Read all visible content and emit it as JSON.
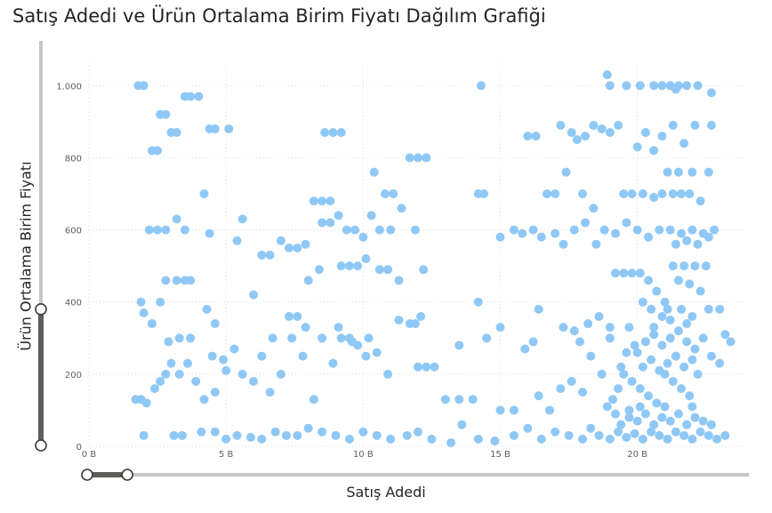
{
  "chart_data": {
    "type": "scatter",
    "title": "Satış Adedi ve Ürün Ortalama Birim Fiyatı Dağılım Grafiği",
    "xlabel": "Satış Adedi",
    "ylabel": "Ürün Ortalama Birim Fiyatı",
    "xlim": [
      0,
      24
    ],
    "ylim": [
      0,
      1050
    ],
    "x_ticks": [
      {
        "value": 0,
        "label": "0 B"
      },
      {
        "value": 5,
        "label": "5 B"
      },
      {
        "value": 10,
        "label": "10 B"
      },
      {
        "value": 15,
        "label": "15 B"
      },
      {
        "value": 20,
        "label": "20 B"
      }
    ],
    "y_ticks": [
      {
        "value": 0,
        "label": "0"
      },
      {
        "value": 200,
        "label": "200"
      },
      {
        "value": 400,
        "label": "400"
      },
      {
        "value": 600,
        "label": "600"
      },
      {
        "value": 800,
        "label": "800"
      },
      {
        "value": 1000,
        "label": "1.000"
      }
    ],
    "grid": true,
    "point_color": "#8fc8f5",
    "x_unit_note": "B",
    "points": [
      [
        1.8,
        1000
      ],
      [
        2.0,
        1000
      ],
      [
        2.3,
        820
      ],
      [
        2.5,
        820
      ],
      [
        2.6,
        920
      ],
      [
        2.8,
        920
      ],
      [
        3.0,
        870
      ],
      [
        3.2,
        870
      ],
      [
        3.5,
        970
      ],
      [
        3.7,
        970
      ],
      [
        4.0,
        970
      ],
      [
        4.4,
        880
      ],
      [
        4.6,
        880
      ],
      [
        5.1,
        880
      ],
      [
        14.3,
        1000
      ],
      [
        18.9,
        1030
      ],
      [
        19.0,
        1000
      ],
      [
        19.6,
        1000
      ],
      [
        20.1,
        1000
      ],
      [
        20.6,
        1000
      ],
      [
        20.9,
        1000
      ],
      [
        21.2,
        1000
      ],
      [
        21.5,
        1000
      ],
      [
        21.8,
        1000
      ],
      [
        22.2,
        1000
      ],
      [
        22.7,
        980
      ],
      [
        21.4,
        990
      ],
      [
        8.6,
        870
      ],
      [
        8.9,
        870
      ],
      [
        9.2,
        870
      ],
      [
        11.7,
        800
      ],
      [
        12.0,
        800
      ],
      [
        12.3,
        800
      ],
      [
        16.0,
        860
      ],
      [
        16.3,
        860
      ],
      [
        17.2,
        890
      ],
      [
        17.6,
        870
      ],
      [
        17.8,
        850
      ],
      [
        18.1,
        860
      ],
      [
        18.4,
        890
      ],
      [
        18.7,
        880
      ],
      [
        19.0,
        870
      ],
      [
        19.3,
        890
      ],
      [
        20.0,
        830
      ],
      [
        20.3,
        870
      ],
      [
        20.6,
        820
      ],
      [
        20.9,
        860
      ],
      [
        21.3,
        890
      ],
      [
        21.7,
        840
      ],
      [
        22.1,
        890
      ],
      [
        22.7,
        890
      ],
      [
        4.2,
        700
      ],
      [
        8.2,
        680
      ],
      [
        8.5,
        680
      ],
      [
        8.8,
        680
      ],
      [
        10.4,
        760
      ],
      [
        10.8,
        700
      ],
      [
        11.1,
        700
      ],
      [
        14.2,
        700
      ],
      [
        14.4,
        700
      ],
      [
        16.7,
        700
      ],
      [
        17.0,
        700
      ],
      [
        17.4,
        760
      ],
      [
        18.0,
        700
      ],
      [
        18.4,
        660
      ],
      [
        19.5,
        700
      ],
      [
        19.8,
        700
      ],
      [
        20.2,
        700
      ],
      [
        20.6,
        690
      ],
      [
        20.9,
        700
      ],
      [
        21.3,
        700
      ],
      [
        21.6,
        700
      ],
      [
        21.9,
        700
      ],
      [
        22.3,
        680
      ],
      [
        22.6,
        760
      ],
      [
        21.1,
        760
      ],
      [
        21.5,
        760
      ],
      [
        22.0,
        760
      ],
      [
        1.9,
        400
      ],
      [
        2.2,
        600
      ],
      [
        2.5,
        600
      ],
      [
        2.8,
        600
      ],
      [
        3.2,
        630
      ],
      [
        3.5,
        600
      ],
      [
        4.4,
        590
      ],
      [
        5.4,
        570
      ],
      [
        5.6,
        630
      ],
      [
        6.3,
        530
      ],
      [
        6.6,
        530
      ],
      [
        7.0,
        570
      ],
      [
        7.3,
        550
      ],
      [
        7.6,
        550
      ],
      [
        7.9,
        560
      ],
      [
        8.5,
        620
      ],
      [
        8.8,
        620
      ],
      [
        9.1,
        640
      ],
      [
        9.4,
        600
      ],
      [
        9.7,
        600
      ],
      [
        10.0,
        580
      ],
      [
        10.3,
        640
      ],
      [
        10.6,
        600
      ],
      [
        11.0,
        600
      ],
      [
        11.4,
        660
      ],
      [
        11.9,
        600
      ],
      [
        15.0,
        580
      ],
      [
        15.5,
        600
      ],
      [
        15.8,
        590
      ],
      [
        16.2,
        600
      ],
      [
        16.5,
        580
      ],
      [
        17.0,
        590
      ],
      [
        17.3,
        560
      ],
      [
        17.7,
        600
      ],
      [
        18.1,
        620
      ],
      [
        18.5,
        560
      ],
      [
        18.8,
        600
      ],
      [
        19.2,
        590
      ],
      [
        19.6,
        620
      ],
      [
        20.0,
        600
      ],
      [
        20.4,
        580
      ],
      [
        20.8,
        600
      ],
      [
        21.2,
        600
      ],
      [
        21.6,
        590
      ],
      [
        22.0,
        600
      ],
      [
        22.4,
        590
      ],
      [
        22.8,
        600
      ],
      [
        21.4,
        560
      ],
      [
        21.8,
        570
      ],
      [
        22.2,
        560
      ],
      [
        22.6,
        580
      ],
      [
        2.0,
        370
      ],
      [
        2.3,
        340
      ],
      [
        2.8,
        460
      ],
      [
        3.2,
        460
      ],
      [
        3.5,
        460
      ],
      [
        3.7,
        460
      ],
      [
        2.6,
        400
      ],
      [
        4.3,
        380
      ],
      [
        4.6,
        340
      ],
      [
        6.0,
        420
      ],
      [
        7.3,
        360
      ],
      [
        7.6,
        360
      ],
      [
        8.0,
        460
      ],
      [
        8.4,
        490
      ],
      [
        9.2,
        500
      ],
      [
        9.5,
        500
      ],
      [
        9.8,
        500
      ],
      [
        10.1,
        520
      ],
      [
        10.6,
        490
      ],
      [
        10.9,
        490
      ],
      [
        11.3,
        460
      ],
      [
        11.9,
        340
      ],
      [
        12.2,
        490
      ],
      [
        14.2,
        400
      ],
      [
        15.0,
        330
      ],
      [
        16.4,
        380
      ],
      [
        17.3,
        330
      ],
      [
        17.7,
        320
      ],
      [
        18.2,
        340
      ],
      [
        18.6,
        360
      ],
      [
        19.2,
        480
      ],
      [
        19.5,
        480
      ],
      [
        19.8,
        480
      ],
      [
        20.1,
        480
      ],
      [
        20.4,
        460
      ],
      [
        20.7,
        430
      ],
      [
        21.0,
        400
      ],
      [
        21.3,
        500
      ],
      [
        21.7,
        500
      ],
      [
        22.1,
        500
      ],
      [
        22.5,
        500
      ],
      [
        21.5,
        460
      ],
      [
        21.9,
        450
      ],
      [
        22.3,
        430
      ],
      [
        1.7,
        130
      ],
      [
        1.9,
        130
      ],
      [
        2.1,
        120
      ],
      [
        2.4,
        160
      ],
      [
        2.6,
        180
      ],
      [
        2.8,
        200
      ],
      [
        3.0,
        230
      ],
      [
        3.3,
        200
      ],
      [
        3.6,
        230
      ],
      [
        3.9,
        180
      ],
      [
        4.2,
        130
      ],
      [
        4.6,
        150
      ],
      [
        5.0,
        210
      ],
      [
        5.3,
        270
      ],
      [
        5.6,
        200
      ],
      [
        6.0,
        180
      ],
      [
        6.3,
        250
      ],
      [
        6.6,
        150
      ],
      [
        7.0,
        200
      ],
      [
        7.4,
        300
      ],
      [
        7.8,
        250
      ],
      [
        8.2,
        130
      ],
      [
        8.5,
        300
      ],
      [
        8.9,
        230
      ],
      [
        9.2,
        300
      ],
      [
        9.5,
        300
      ],
      [
        9.8,
        280
      ],
      [
        10.1,
        250
      ],
      [
        10.5,
        260
      ],
      [
        10.9,
        200
      ],
      [
        11.3,
        350
      ],
      [
        11.7,
        340
      ],
      [
        12.0,
        220
      ],
      [
        12.3,
        220
      ],
      [
        12.6,
        220
      ],
      [
        13.0,
        130
      ],
      [
        13.5,
        130
      ],
      [
        14.0,
        130
      ],
      [
        14.5,
        300
      ],
      [
        15.0,
        100
      ],
      [
        15.5,
        100
      ],
      [
        15.9,
        270
      ],
      [
        16.4,
        140
      ],
      [
        16.8,
        100
      ],
      [
        17.2,
        160
      ],
      [
        17.6,
        180
      ],
      [
        18.0,
        150
      ],
      [
        18.3,
        250
      ],
      [
        18.7,
        200
      ],
      [
        19.0,
        300
      ],
      [
        19.4,
        220
      ],
      [
        19.7,
        330
      ],
      [
        20.0,
        260
      ],
      [
        20.3,
        290
      ],
      [
        20.6,
        310
      ],
      [
        20.9,
        280
      ],
      [
        21.2,
        300
      ],
      [
        21.5,
        320
      ],
      [
        21.8,
        290
      ],
      [
        22.1,
        270
      ],
      [
        22.4,
        300
      ],
      [
        22.7,
        250
      ],
      [
        23.0,
        230
      ],
      [
        23.2,
        310
      ],
      [
        23.4,
        290
      ],
      [
        19.5,
        200
      ],
      [
        19.8,
        180
      ],
      [
        20.1,
        160
      ],
      [
        20.4,
        140
      ],
      [
        20.7,
        120
      ],
      [
        21.0,
        200
      ],
      [
        21.3,
        180
      ],
      [
        21.6,
        160
      ],
      [
        21.9,
        140
      ],
      [
        22.2,
        200
      ],
      [
        20.2,
        220
      ],
      [
        20.5,
        240
      ],
      [
        20.8,
        210
      ],
      [
        21.1,
        230
      ],
      [
        21.4,
        250
      ],
      [
        21.7,
        220
      ],
      [
        22.0,
        240
      ],
      [
        19.6,
        260
      ],
      [
        19.9,
        280
      ],
      [
        20.6,
        330
      ],
      [
        21.2,
        350
      ],
      [
        21.8,
        340
      ],
      [
        19.3,
        160
      ],
      [
        19.1,
        130
      ],
      [
        18.9,
        110
      ],
      [
        19.7,
        100
      ],
      [
        2.0,
        30
      ],
      [
        3.1,
        30
      ],
      [
        3.4,
        30
      ],
      [
        4.1,
        40
      ],
      [
        4.6,
        40
      ],
      [
        5.0,
        20
      ],
      [
        5.4,
        30
      ],
      [
        5.9,
        25
      ],
      [
        6.3,
        20
      ],
      [
        6.8,
        40
      ],
      [
        7.2,
        30
      ],
      [
        7.6,
        30
      ],
      [
        8.0,
        50
      ],
      [
        8.5,
        40
      ],
      [
        9.0,
        30
      ],
      [
        9.5,
        20
      ],
      [
        10.0,
        40
      ],
      [
        10.5,
        30
      ],
      [
        11.0,
        20
      ],
      [
        11.6,
        30
      ],
      [
        12.0,
        40
      ],
      [
        12.5,
        20
      ],
      [
        13.2,
        10
      ],
      [
        13.6,
        60
      ],
      [
        14.2,
        20
      ],
      [
        14.8,
        15
      ],
      [
        15.5,
        30
      ],
      [
        16.0,
        50
      ],
      [
        16.5,
        20
      ],
      [
        17.0,
        40
      ],
      [
        17.5,
        30
      ],
      [
        18.0,
        20
      ],
      [
        18.3,
        50
      ],
      [
        18.6,
        30
      ],
      [
        19.0,
        20
      ],
      [
        19.3,
        40
      ],
      [
        19.6,
        25
      ],
      [
        19.9,
        35
      ],
      [
        20.2,
        20
      ],
      [
        20.5,
        40
      ],
      [
        20.8,
        30
      ],
      [
        21.1,
        20
      ],
      [
        21.4,
        40
      ],
      [
        21.7,
        30
      ],
      [
        22.0,
        20
      ],
      [
        22.3,
        40
      ],
      [
        22.6,
        30
      ],
      [
        22.9,
        20
      ],
      [
        23.2,
        30
      ],
      [
        19.4,
        60
      ],
      [
        19.7,
        80
      ],
      [
        20.0,
        70
      ],
      [
        20.3,
        90
      ],
      [
        20.6,
        60
      ],
      [
        20.9,
        80
      ],
      [
        21.2,
        70
      ],
      [
        21.5,
        90
      ],
      [
        21.8,
        60
      ],
      [
        22.1,
        80
      ],
      [
        22.4,
        70
      ],
      [
        22.7,
        60
      ],
      [
        19.2,
        90
      ],
      [
        20.1,
        110
      ],
      [
        21.0,
        110
      ],
      [
        22.0,
        110
      ],
      [
        2.9,
        290
      ],
      [
        3.3,
        300
      ],
      [
        3.7,
        300
      ],
      [
        4.5,
        250
      ],
      [
        4.9,
        240
      ],
      [
        6.7,
        300
      ],
      [
        7.9,
        330
      ],
      [
        9.1,
        330
      ],
      [
        9.6,
        290
      ],
      [
        10.2,
        300
      ],
      [
        12.1,
        360
      ],
      [
        13.5,
        280
      ],
      [
        16.2,
        290
      ],
      [
        17.9,
        290
      ],
      [
        19.0,
        330
      ],
      [
        20.2,
        400
      ],
      [
        20.5,
        380
      ],
      [
        20.9,
        360
      ],
      [
        21.1,
        380
      ],
      [
        21.6,
        380
      ],
      [
        22.0,
        360
      ],
      [
        22.6,
        380
      ],
      [
        23.0,
        380
      ]
    ]
  },
  "slider": {
    "vertical_start": 0,
    "vertical_end": 380,
    "horizontal_start": 0,
    "horizontal_end": 1.4
  }
}
